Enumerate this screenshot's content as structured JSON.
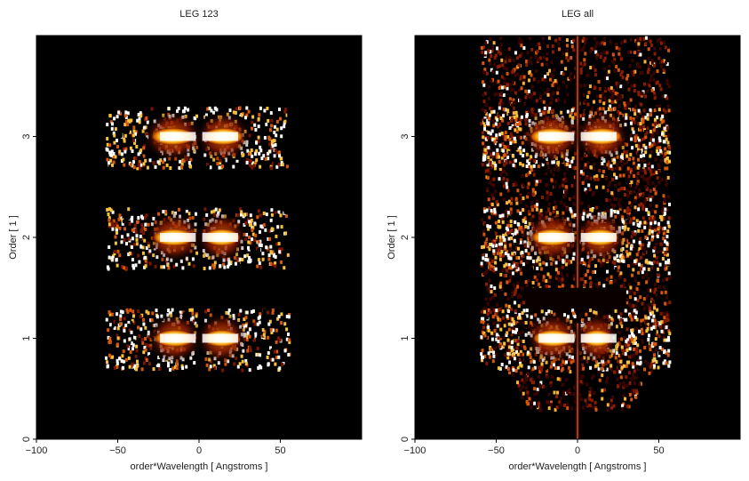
{
  "chart_data": [
    {
      "type": "heatmap",
      "title": "LEG 123",
      "xlabel": "order*Wavelength [ Angstroms ]",
      "ylabel": "Order [ 1 ]",
      "xlim": [
        -100,
        100
      ],
      "ylim": [
        0,
        4
      ],
      "xticks": [
        -100,
        -50,
        0,
        50
      ],
      "yticks": [
        0,
        1,
        2,
        3
      ],
      "colormap": [
        "#000000",
        "#5a0a00",
        "#b32a00",
        "#e86a00",
        "#f7b520",
        "#ffffff"
      ],
      "grid": false,
      "legend": "none",
      "bands": [
        {
          "order": 1,
          "x_range": [
            -58,
            55
          ],
          "core_x": [
            -28,
            26
          ],
          "gap": [
            -2,
            2
          ]
        },
        {
          "order": 2,
          "x_range": [
            -58,
            54
          ],
          "core_x": [
            -29,
            26
          ],
          "gap": [
            -2,
            2
          ]
        },
        {
          "order": 3,
          "x_range": [
            -58,
            54
          ],
          "core_x": [
            -30,
            28
          ],
          "gap": [
            -2,
            2
          ]
        }
      ]
    },
    {
      "type": "heatmap",
      "title": "LEG all",
      "xlabel": "order*Wavelength [ Angstroms ]",
      "ylabel": "Order [ 1 ]",
      "xlim": [
        -100,
        100
      ],
      "ylim": [
        0,
        4
      ],
      "xticks": [
        -100,
        -50,
        0,
        50
      ],
      "yticks": [
        0,
        1,
        2,
        3
      ],
      "colormap": [
        "#000000",
        "#5a0a00",
        "#b32a00",
        "#e86a00",
        "#f7b520",
        "#ffffff"
      ],
      "grid": false,
      "legend": "none",
      "bands": [
        {
          "order": 1,
          "x_range": [
            -60,
            56
          ],
          "core_x": [
            -28,
            22
          ],
          "gap": [
            -2,
            2
          ]
        },
        {
          "order": 2,
          "x_range": [
            -60,
            56
          ],
          "core_x": [
            -29,
            26
          ],
          "gap": [
            -2,
            2
          ]
        },
        {
          "order": 3,
          "x_range": [
            -60,
            56
          ],
          "core_x": [
            -30,
            28
          ],
          "gap": [
            -2,
            2
          ]
        }
      ]
    }
  ]
}
